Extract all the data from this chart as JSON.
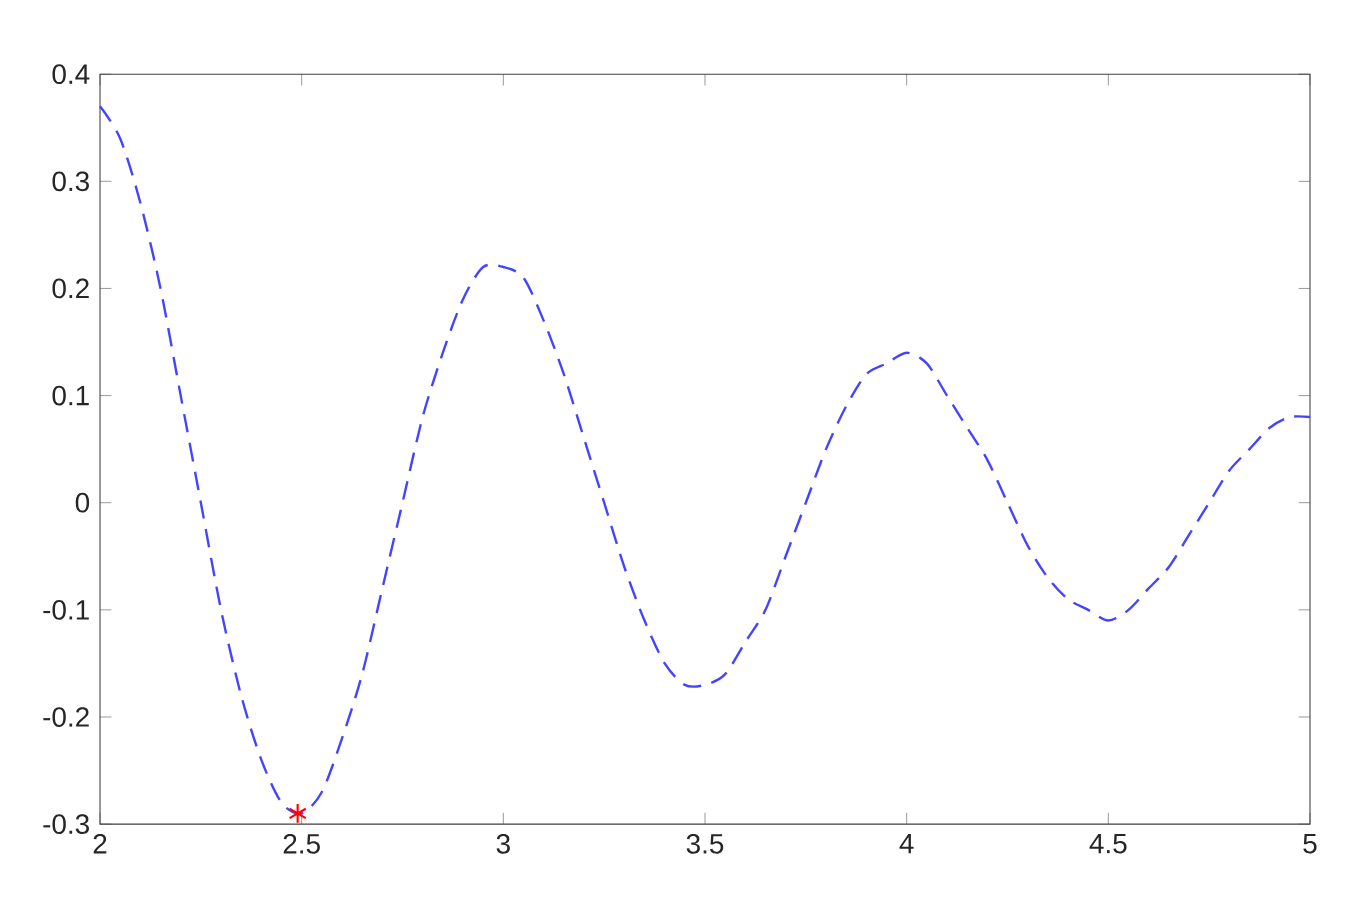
{
  "chart_data": {
    "type": "line",
    "xlim": [
      2,
      5
    ],
    "ylim": [
      -0.3,
      0.4
    ],
    "xticks": [
      2,
      {
        "value": 2.5,
        "label": "2.5"
      },
      3,
      {
        "value": 3.5,
        "label": "3.5"
      },
      4,
      {
        "value": 4.5,
        "label": "4.5"
      },
      5
    ],
    "yticks": [
      -0.3,
      -0.2,
      -0.1,
      0,
      0.1,
      0.2,
      0.3,
      0.4
    ],
    "grid": false,
    "series": [
      {
        "color": "#4444ff",
        "line_style": "dashed",
        "marker": "none",
        "x": [
          2.0,
          2.05,
          2.1,
          2.15,
          2.2,
          2.25,
          2.3,
          2.35,
          2.4,
          2.45,
          2.5,
          2.55,
          2.6,
          2.65,
          2.7,
          2.75,
          2.8,
          2.85,
          2.9,
          2.95,
          3.0,
          3.05,
          3.1,
          3.15,
          3.2,
          3.25,
          3.3,
          3.35,
          3.4,
          3.45,
          3.5,
          3.55,
          3.6,
          3.65,
          3.7,
          3.75,
          3.8,
          3.85,
          3.9,
          3.95,
          4.0,
          4.05,
          4.1,
          4.15,
          4.2,
          4.25,
          4.3,
          4.35,
          4.4,
          4.45,
          4.5,
          4.55,
          4.6,
          4.65,
          4.7,
          4.75,
          4.8,
          4.85,
          4.9,
          4.95,
          5.0
        ],
        "values": [
          0.37,
          0.34,
          0.28,
          0.2,
          0.1,
          0.0,
          -0.1,
          -0.18,
          -0.24,
          -0.28,
          -0.29,
          -0.27,
          -0.22,
          -0.16,
          -0.08,
          0.0,
          0.08,
          0.14,
          0.19,
          0.22,
          0.22,
          0.21,
          0.17,
          0.12,
          0.06,
          0.0,
          -0.06,
          -0.11,
          -0.15,
          -0.17,
          -0.17,
          -0.16,
          -0.13,
          -0.1,
          -0.05,
          0.0,
          0.05,
          0.09,
          0.12,
          0.13,
          0.14,
          0.13,
          0.1,
          0.07,
          0.04,
          0.0,
          -0.04,
          -0.07,
          -0.09,
          -0.1,
          -0.11,
          -0.1,
          -0.08,
          -0.06,
          -0.03,
          0.0,
          0.03,
          0.05,
          0.07,
          0.08,
          0.08
        ]
      },
      {
        "type": "scatter",
        "color": "#ff0000",
        "marker": "cross",
        "x": [
          2.49
        ],
        "values": [
          -0.29
        ]
      }
    ]
  }
}
